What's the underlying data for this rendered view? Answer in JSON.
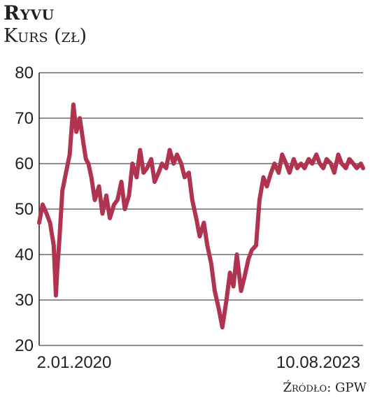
{
  "chart_data": {
    "type": "line",
    "title": "Ryvu",
    "ylabel": "Kurs (zł)",
    "source": "Źródło: GPW",
    "ylim": [
      20,
      80
    ],
    "yticks": [
      20,
      30,
      40,
      50,
      60,
      70,
      80
    ],
    "xlim": [
      "2020-01-02",
      "2023-08-10"
    ],
    "xtick_labels": [
      "2.01.2020",
      "10.08.2023"
    ],
    "grid": "horizontal",
    "line_color": "#b0344f",
    "series": [
      {
        "x": [
          "2020-01-02",
          "2020-01-16",
          "2020-02-01",
          "2020-02-15",
          "2020-03-01",
          "2020-03-10",
          "2020-03-16",
          "2020-03-25",
          "2020-04-05",
          "2020-04-20",
          "2020-05-05",
          "2020-05-20",
          "2020-06-01",
          "2020-06-15",
          "2020-07-01",
          "2020-07-10",
          "2020-07-20",
          "2020-08-01",
          "2020-08-15",
          "2020-09-01",
          "2020-09-15",
          "2020-10-01",
          "2020-10-15",
          "2020-11-01",
          "2020-11-15",
          "2020-12-01",
          "2020-12-15",
          "2021-01-01",
          "2021-01-15",
          "2021-02-01",
          "2021-02-15",
          "2021-03-01",
          "2021-03-15",
          "2021-04-01",
          "2021-04-15",
          "2021-05-01",
          "2021-05-15",
          "2021-06-01",
          "2021-06-15",
          "2021-07-01",
          "2021-07-15",
          "2021-08-01",
          "2021-08-15",
          "2021-09-01",
          "2021-09-15",
          "2021-10-01",
          "2021-10-15",
          "2021-11-01",
          "2021-11-15",
          "2021-12-01",
          "2021-12-15",
          "2022-01-01",
          "2022-01-15",
          "2022-02-01",
          "2022-02-15",
          "2022-03-01",
          "2022-03-15",
          "2022-04-01",
          "2022-04-15",
          "2022-05-01",
          "2022-05-15",
          "2022-06-01",
          "2022-06-15",
          "2022-07-01",
          "2022-07-15",
          "2022-08-01",
          "2022-08-15",
          "2022-09-01",
          "2022-09-15",
          "2022-10-01",
          "2022-10-15",
          "2022-11-01",
          "2022-11-15",
          "2022-12-01",
          "2022-12-15",
          "2023-01-01",
          "2023-01-15",
          "2023-02-01",
          "2023-02-15",
          "2023-03-01",
          "2023-03-15",
          "2023-04-01",
          "2023-04-15",
          "2023-05-01",
          "2023-05-15",
          "2023-06-01",
          "2023-06-15",
          "2023-07-01",
          "2023-07-15",
          "2023-08-01",
          "2023-08-10"
        ],
        "y": [
          47,
          51,
          49,
          47,
          42,
          31,
          37,
          44,
          54,
          58,
          62,
          73,
          67,
          70,
          64,
          61,
          60,
          57,
          52,
          55,
          49,
          53,
          48,
          51,
          52,
          56,
          50,
          53,
          60,
          57,
          63,
          58,
          59,
          61,
          56,
          58,
          60,
          59,
          63,
          60,
          62,
          60,
          57,
          58,
          52,
          48,
          44,
          47,
          42,
          38,
          32,
          28,
          24,
          30,
          36,
          33,
          40,
          32,
          35,
          39,
          41,
          42,
          52,
          57,
          55,
          58,
          60,
          58,
          62,
          60,
          58,
          61,
          59,
          60,
          59,
          61,
          60,
          62,
          60,
          59,
          61,
          60,
          58,
          62,
          60,
          59,
          61,
          60,
          59,
          60,
          59
        ]
      }
    ]
  }
}
